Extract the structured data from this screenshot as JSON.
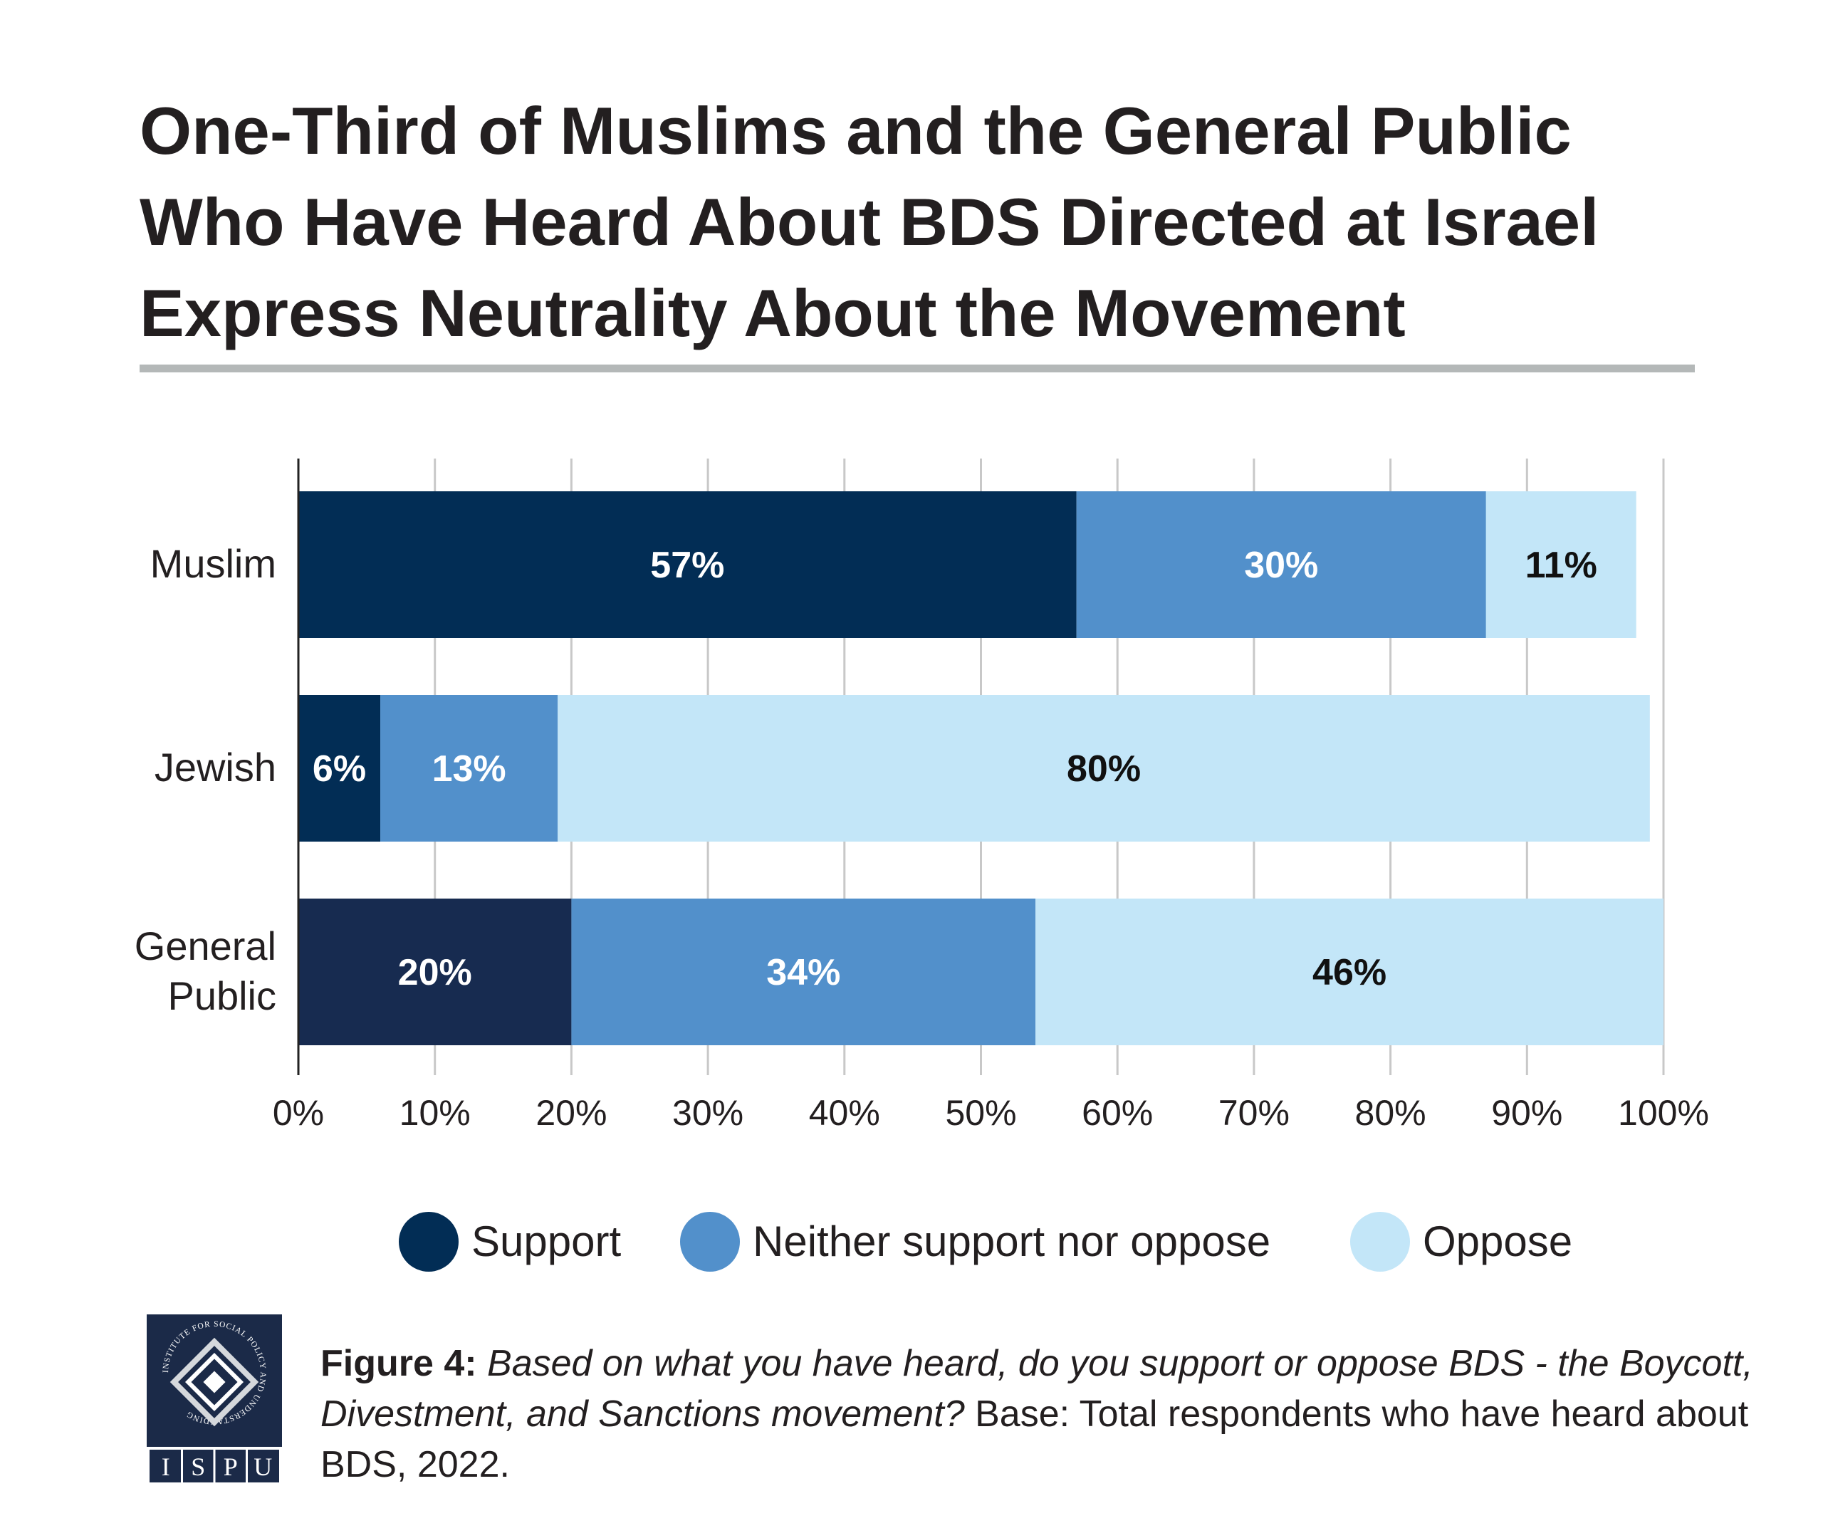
{
  "title_lines": [
    "One-Third of Muslims and the General Public",
    "Who Have Heard About BDS Directed at Israel",
    "Express Neutrality About the Movement"
  ],
  "colors": {
    "support": "#022d55",
    "support_general": "#172b50",
    "neither": "#5290cb",
    "oppose": "#c3e6f8",
    "grid": "#c8c8c8",
    "axis": "#222222",
    "rule": "#b4b8b8"
  },
  "chart_data": {
    "type": "bar",
    "orientation": "horizontal",
    "stacked": true,
    "categories": [
      "Muslim",
      "Jewish",
      "General Public"
    ],
    "series": [
      {
        "name": "Support",
        "values": [
          57,
          6,
          20
        ],
        "labels": [
          "57%",
          "6%",
          "20%"
        ]
      },
      {
        "name": "Neither support nor oppose",
        "values": [
          30,
          13,
          34
        ],
        "labels": [
          "30%",
          "13%",
          "34%"
        ]
      },
      {
        "name": "Oppose",
        "values": [
          11,
          80,
          46
        ],
        "labels": [
          "11%",
          "80%",
          "46%"
        ]
      }
    ],
    "xlim": [
      0,
      100
    ],
    "xticks": [
      0,
      10,
      20,
      30,
      40,
      50,
      60,
      70,
      80,
      90,
      100
    ],
    "xtick_labels": [
      "0%",
      "10%",
      "20%",
      "30%",
      "40%",
      "50%",
      "60%",
      "70%",
      "80%",
      "90%",
      "100%"
    ],
    "grid": true,
    "legend_position": "bottom"
  },
  "legend": [
    {
      "name": "Support",
      "color": "#022d55"
    },
    {
      "name": "Neither support nor oppose",
      "color": "#5290cb"
    },
    {
      "name": "Oppose",
      "color": "#c3e6f8"
    }
  ],
  "logo": {
    "arc_text": "INSTITUTE FOR SOCIAL POLICY AND UNDERSTANDING",
    "letters": [
      "I",
      "S",
      "P",
      "U"
    ]
  },
  "caption": {
    "figure_label": "Figure 4:",
    "question": "Based on what you have heard, do you support or oppose BDS - the Boycott, Divestment, and Sanctions movement?",
    "base": "Base: Total respondents who have heard about BDS, 2022."
  }
}
